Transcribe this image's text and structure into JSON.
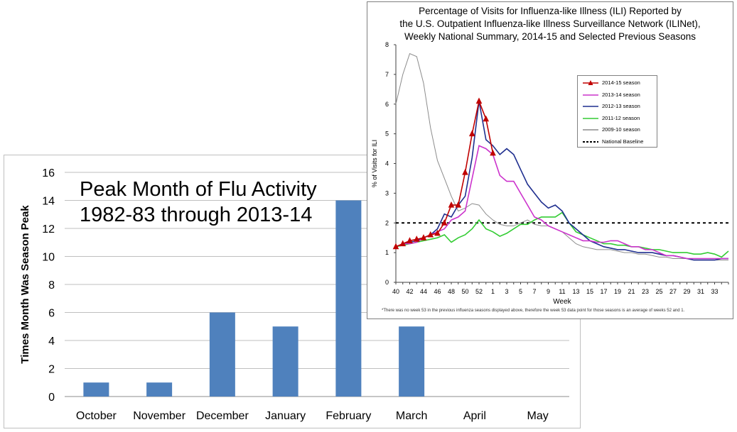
{
  "chart_data": [
    {
      "type": "bar",
      "title_lines": [
        "Peak Month of Flu Activity",
        "1982-83 through 2013-14"
      ],
      "xlabel": "",
      "ylabel": "Times Month Was Season Peak",
      "categories": [
        "October",
        "November",
        "December",
        "January",
        "February",
        "March",
        "April",
        "May"
      ],
      "values": [
        1,
        1,
        6,
        5,
        14,
        5,
        0,
        0
      ],
      "ylim": [
        0,
        16
      ],
      "yticks": [
        "0",
        "2",
        "4",
        "6",
        "8",
        "10",
        "12",
        "14",
        "16"
      ],
      "bar_color": "#4f81bd",
      "grid": true
    },
    {
      "type": "line",
      "title_lines": [
        "Percentage of Visits for Influenza-like Illness (ILI) Reported by",
        "the U.S. Outpatient Influenza-like Illness Surveillance Network (ILINet),",
        "Weekly National Summary, 2014-15 and Selected Previous Seasons"
      ],
      "xlabel": "Week",
      "ylabel": "% of Visits for ILI",
      "ylim": [
        0,
        8
      ],
      "yticks": [
        "0",
        "1",
        "2",
        "3",
        "4",
        "5",
        "6",
        "7",
        "8"
      ],
      "xticks": [
        "40",
        "42",
        "44",
        "46",
        "48",
        "50",
        "52",
        "1",
        "3",
        "5",
        "7",
        "9",
        "11",
        "13",
        "15",
        "17",
        "19",
        "21",
        "23",
        "25",
        "27",
        "29",
        "31",
        "33"
      ],
      "baseline": 2.0,
      "legend_position": "upper-right",
      "series": [
        {
          "name": "2014-15 season",
          "color": "#c00000",
          "marker": "triangle",
          "values": [
            1.2,
            1.3,
            1.4,
            1.45,
            1.5,
            1.6,
            1.65,
            2.0,
            2.6,
            2.6,
            3.7,
            5.0,
            6.1,
            5.5,
            4.35
          ]
        },
        {
          "name": "2013-14 season",
          "color": "#cc33cc",
          "marker": "none",
          "values": [
            1.2,
            1.3,
            1.3,
            1.35,
            1.5,
            1.6,
            1.7,
            1.8,
            2.1,
            2.2,
            2.4,
            3.5,
            4.6,
            4.5,
            4.3,
            3.6,
            3.4,
            3.4,
            3.0,
            2.6,
            2.2,
            2.1,
            1.9,
            1.8,
            1.7,
            1.6,
            1.5,
            1.4,
            1.4,
            1.35,
            1.35,
            1.4,
            1.4,
            1.3,
            1.2,
            1.2,
            1.1,
            1.1,
            1.0,
            0.9,
            0.9,
            0.85,
            0.8,
            0.8,
            0.8,
            0.8,
            0.8,
            0.8,
            0.8
          ]
        },
        {
          "name": "2012-13 season",
          "color": "#1f2f8f",
          "marker": "none",
          "values": [
            1.2,
            1.3,
            1.35,
            1.4,
            1.5,
            1.6,
            1.8,
            2.3,
            2.2,
            2.6,
            2.9,
            4.2,
            6.1,
            4.8,
            4.6,
            4.3,
            4.5,
            4.3,
            3.8,
            3.3,
            3.0,
            2.7,
            2.5,
            2.6,
            2.4,
            2.0,
            1.8,
            1.6,
            1.4,
            1.3,
            1.2,
            1.15,
            1.1,
            1.1,
            1.05,
            1.0,
            1.0,
            1.0,
            0.95,
            0.9,
            0.9,
            0.85,
            0.8,
            0.75,
            0.75,
            0.75,
            0.75,
            0.8,
            0.8
          ]
        },
        {
          "name": "2011-12 season",
          "color": "#33cc33",
          "marker": "none",
          "values": [
            1.2,
            1.25,
            1.3,
            1.35,
            1.4,
            1.45,
            1.5,
            1.6,
            1.35,
            1.5,
            1.6,
            1.8,
            2.1,
            1.8,
            1.7,
            1.55,
            1.65,
            1.8,
            1.95,
            1.95,
            2.1,
            2.2,
            2.2,
            2.2,
            2.35,
            2.0,
            1.7,
            1.6,
            1.5,
            1.4,
            1.3,
            1.3,
            1.25,
            1.25,
            1.2,
            1.2,
            1.15,
            1.1,
            1.1,
            1.05,
            1.0,
            1.0,
            1.0,
            0.95,
            0.95,
            1.0,
            0.95,
            0.85,
            1.05
          ]
        },
        {
          "name": "2009-10 season",
          "color": "#8c8c8c",
          "marker": "none",
          "values": [
            6.0,
            7.0,
            7.7,
            7.6,
            6.7,
            5.2,
            4.1,
            3.5,
            2.9,
            2.4,
            2.5,
            2.65,
            2.6,
            2.3,
            2.1,
            1.95,
            1.9,
            1.9,
            2.0,
            2.1,
            1.95,
            1.9,
            1.9,
            1.8,
            1.7,
            1.5,
            1.3,
            1.2,
            1.15,
            1.1,
            1.1,
            1.1,
            1.05,
            1.0,
            1.0,
            0.95,
            0.95,
            0.9,
            0.85,
            0.85,
            0.8,
            0.8,
            0.8,
            0.75,
            0.75,
            0.75,
            0.75,
            0.75,
            0.75
          ]
        }
      ],
      "baseline_label": "National Baseline",
      "footnote": "*There was no week 53 in the previous influenza seasons displayed above, therefore the week 53 data point for those seasons is an average of weeks 52 and 1."
    }
  ]
}
